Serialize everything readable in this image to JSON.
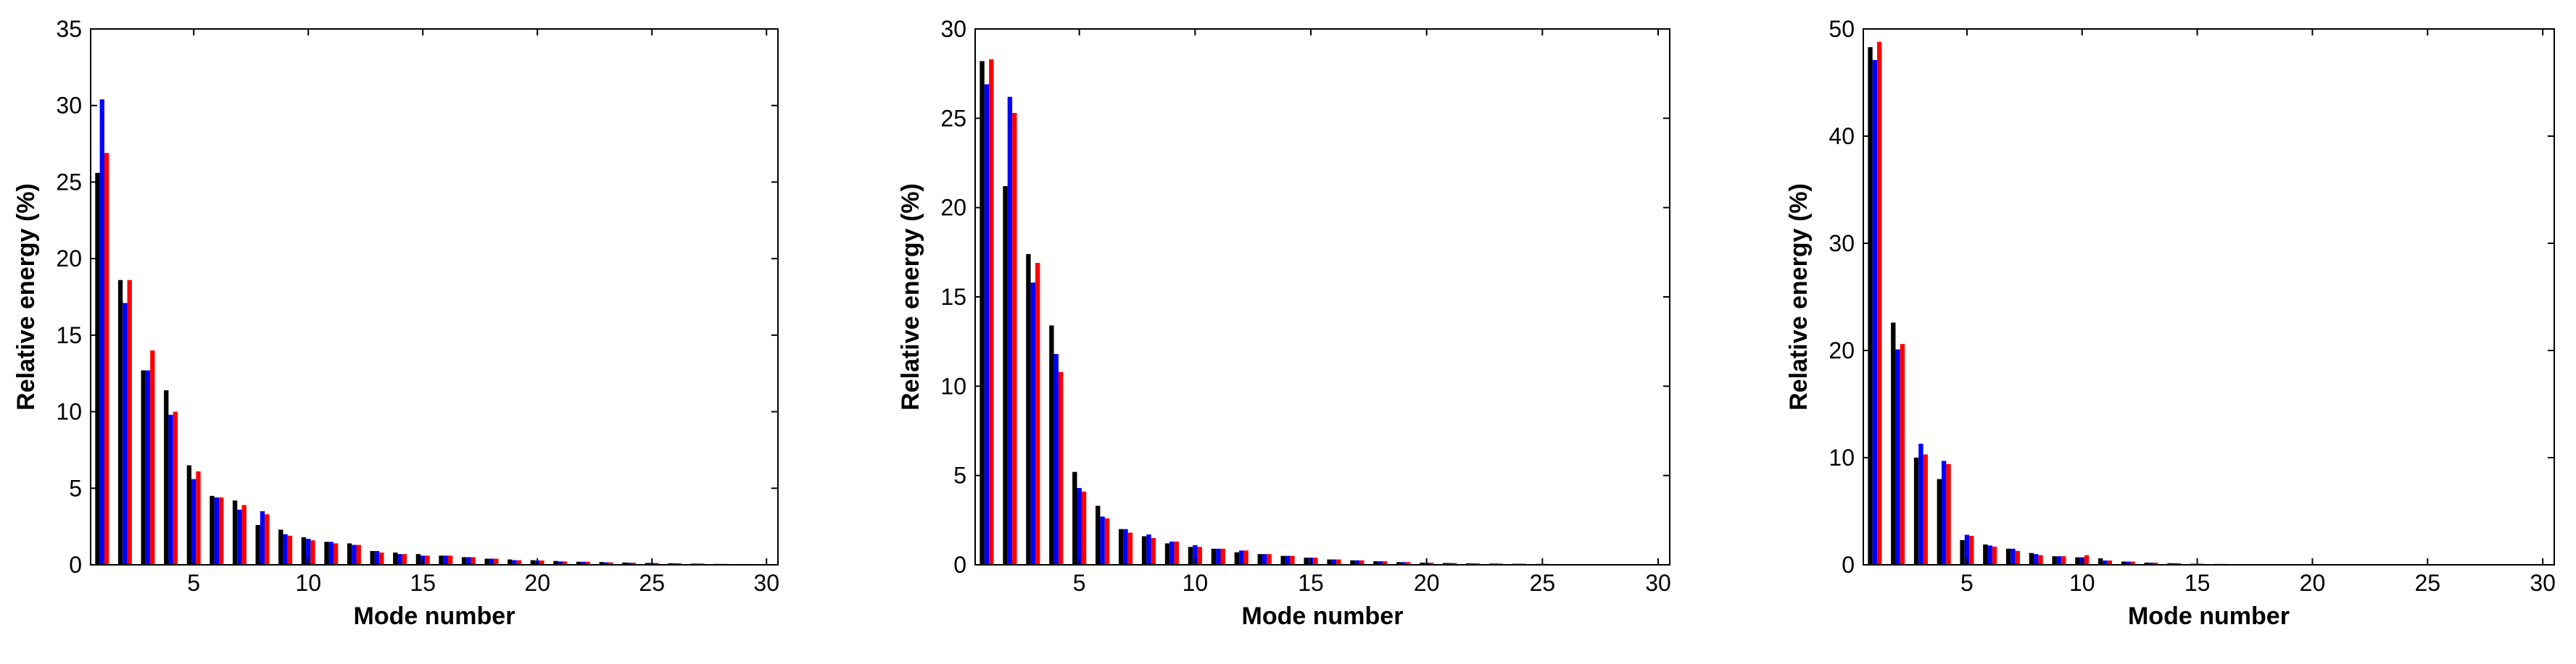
{
  "chart_data": [
    {
      "type": "bar",
      "xlabel": "Mode number",
      "ylabel": "Relative energy (%)",
      "xlim": [
        0.5,
        30.5
      ],
      "ylim": [
        0,
        35
      ],
      "xticks": [
        5,
        10,
        15,
        20,
        25,
        30
      ],
      "yticks": [
        0,
        5,
        10,
        15,
        20,
        25,
        30,
        35
      ],
      "grid": false,
      "categories": [
        1,
        2,
        3,
        4,
        5,
        6,
        7,
        8,
        9,
        10,
        11,
        12,
        13,
        14,
        15,
        16,
        17,
        18,
        19,
        20,
        21,
        22,
        23,
        24,
        25,
        26,
        27,
        28,
        29,
        30
      ],
      "series": [
        {
          "color": "#000000",
          "values": [
            25.6,
            18.6,
            12.7,
            11.4,
            6.5,
            4.5,
            4.2,
            2.6,
            2.3,
            1.8,
            1.5,
            1.4,
            0.9,
            0.8,
            0.7,
            0.6,
            0.5,
            0.4,
            0.35,
            0.3,
            0.25,
            0.2,
            0.18,
            0.15,
            0.12,
            0.1,
            0.08,
            0.06,
            0.05,
            0.04
          ]
        },
        {
          "color": "#0000ff",
          "values": [
            30.4,
            17.1,
            12.7,
            9.8,
            5.6,
            4.4,
            3.6,
            3.5,
            2.0,
            1.7,
            1.5,
            1.3,
            0.9,
            0.7,
            0.6,
            0.6,
            0.5,
            0.4,
            0.3,
            0.28,
            0.22,
            0.2,
            0.16,
            0.14,
            0.12,
            0.1,
            0.08,
            0.06,
            0.05,
            0.04
          ]
        },
        {
          "color": "#ff0000",
          "values": [
            26.9,
            18.6,
            14.0,
            10.0,
            6.1,
            4.4,
            3.9,
            3.3,
            1.9,
            1.6,
            1.4,
            1.3,
            0.8,
            0.7,
            0.6,
            0.6,
            0.5,
            0.4,
            0.3,
            0.28,
            0.22,
            0.2,
            0.16,
            0.14,
            0.12,
            0.1,
            0.08,
            0.06,
            0.05,
            0.04
          ]
        }
      ]
    },
    {
      "type": "bar",
      "xlabel": "Mode number",
      "ylabel": "Relative energy (%)",
      "xlim": [
        0.5,
        30.5
      ],
      "ylim": [
        0,
        30
      ],
      "xticks": [
        5,
        10,
        15,
        20,
        25,
        30
      ],
      "yticks": [
        0,
        5,
        10,
        15,
        20,
        25,
        30
      ],
      "grid": false,
      "categories": [
        1,
        2,
        3,
        4,
        5,
        6,
        7,
        8,
        9,
        10,
        11,
        12,
        13,
        14,
        15,
        16,
        17,
        18,
        19,
        20,
        21,
        22,
        23,
        24,
        25,
        26,
        27,
        28,
        29,
        30
      ],
      "series": [
        {
          "color": "#000000",
          "values": [
            28.2,
            21.2,
            17.4,
            13.4,
            5.2,
            3.3,
            2.0,
            1.6,
            1.2,
            1.0,
            0.9,
            0.7,
            0.6,
            0.5,
            0.4,
            0.3,
            0.25,
            0.2,
            0.15,
            0.12,
            0.1,
            0.08,
            0.07,
            0.06,
            0.05,
            0.04,
            0.03,
            0.03,
            0.02,
            0.02
          ]
        },
        {
          "color": "#0000ff",
          "values": [
            26.9,
            26.2,
            15.8,
            11.8,
            4.3,
            2.7,
            2.0,
            1.7,
            1.3,
            1.1,
            0.9,
            0.8,
            0.6,
            0.5,
            0.4,
            0.3,
            0.25,
            0.2,
            0.15,
            0.12,
            0.1,
            0.08,
            0.07,
            0.06,
            0.05,
            0.04,
            0.03,
            0.03,
            0.02,
            0.02
          ]
        },
        {
          "color": "#ff0000",
          "values": [
            28.3,
            25.3,
            16.9,
            10.8,
            4.1,
            2.6,
            1.8,
            1.5,
            1.3,
            1.0,
            0.9,
            0.8,
            0.6,
            0.5,
            0.4,
            0.3,
            0.25,
            0.2,
            0.15,
            0.12,
            0.1,
            0.08,
            0.07,
            0.06,
            0.05,
            0.04,
            0.03,
            0.03,
            0.02,
            0.02
          ]
        }
      ]
    },
    {
      "type": "bar",
      "xlabel": "Mode number",
      "ylabel": "Relative energy (%)",
      "xlim": [
        0.5,
        30.5
      ],
      "ylim": [
        0,
        50
      ],
      "xticks": [
        5,
        10,
        15,
        20,
        25,
        30
      ],
      "yticks": [
        0,
        10,
        20,
        30,
        40,
        50
      ],
      "grid": false,
      "categories": [
        1,
        2,
        3,
        4,
        5,
        6,
        7,
        8,
        9,
        10,
        11,
        12,
        13,
        14,
        15,
        16,
        17,
        18,
        19,
        20,
        21,
        22,
        23,
        24,
        25,
        26,
        27,
        28,
        29,
        30
      ],
      "series": [
        {
          "color": "#000000",
          "values": [
            48.3,
            22.6,
            10.0,
            8.0,
            2.3,
            1.9,
            1.5,
            1.1,
            0.8,
            0.7,
            0.6,
            0.3,
            0.2,
            0.15,
            0.1,
            0.08,
            0.06,
            0.05,
            0.04,
            0.03,
            0.03,
            0.02,
            0.02,
            0.02,
            0.01,
            0.01,
            0.01,
            0.01,
            0.01,
            0.01
          ]
        },
        {
          "color": "#0000ff",
          "values": [
            47.1,
            20.1,
            11.3,
            9.7,
            2.8,
            1.8,
            1.5,
            1.0,
            0.8,
            0.7,
            0.4,
            0.3,
            0.2,
            0.15,
            0.1,
            0.08,
            0.06,
            0.05,
            0.04,
            0.03,
            0.03,
            0.02,
            0.02,
            0.02,
            0.01,
            0.01,
            0.01,
            0.01,
            0.01,
            0.01
          ]
        },
        {
          "color": "#ff0000",
          "values": [
            48.8,
            20.6,
            10.3,
            9.4,
            2.7,
            1.7,
            1.3,
            0.9,
            0.8,
            0.9,
            0.4,
            0.3,
            0.2,
            0.15,
            0.1,
            0.08,
            0.06,
            0.05,
            0.04,
            0.03,
            0.03,
            0.02,
            0.02,
            0.02,
            0.01,
            0.01,
            0.01,
            0.01,
            0.01,
            0.01
          ]
        }
      ]
    }
  ]
}
